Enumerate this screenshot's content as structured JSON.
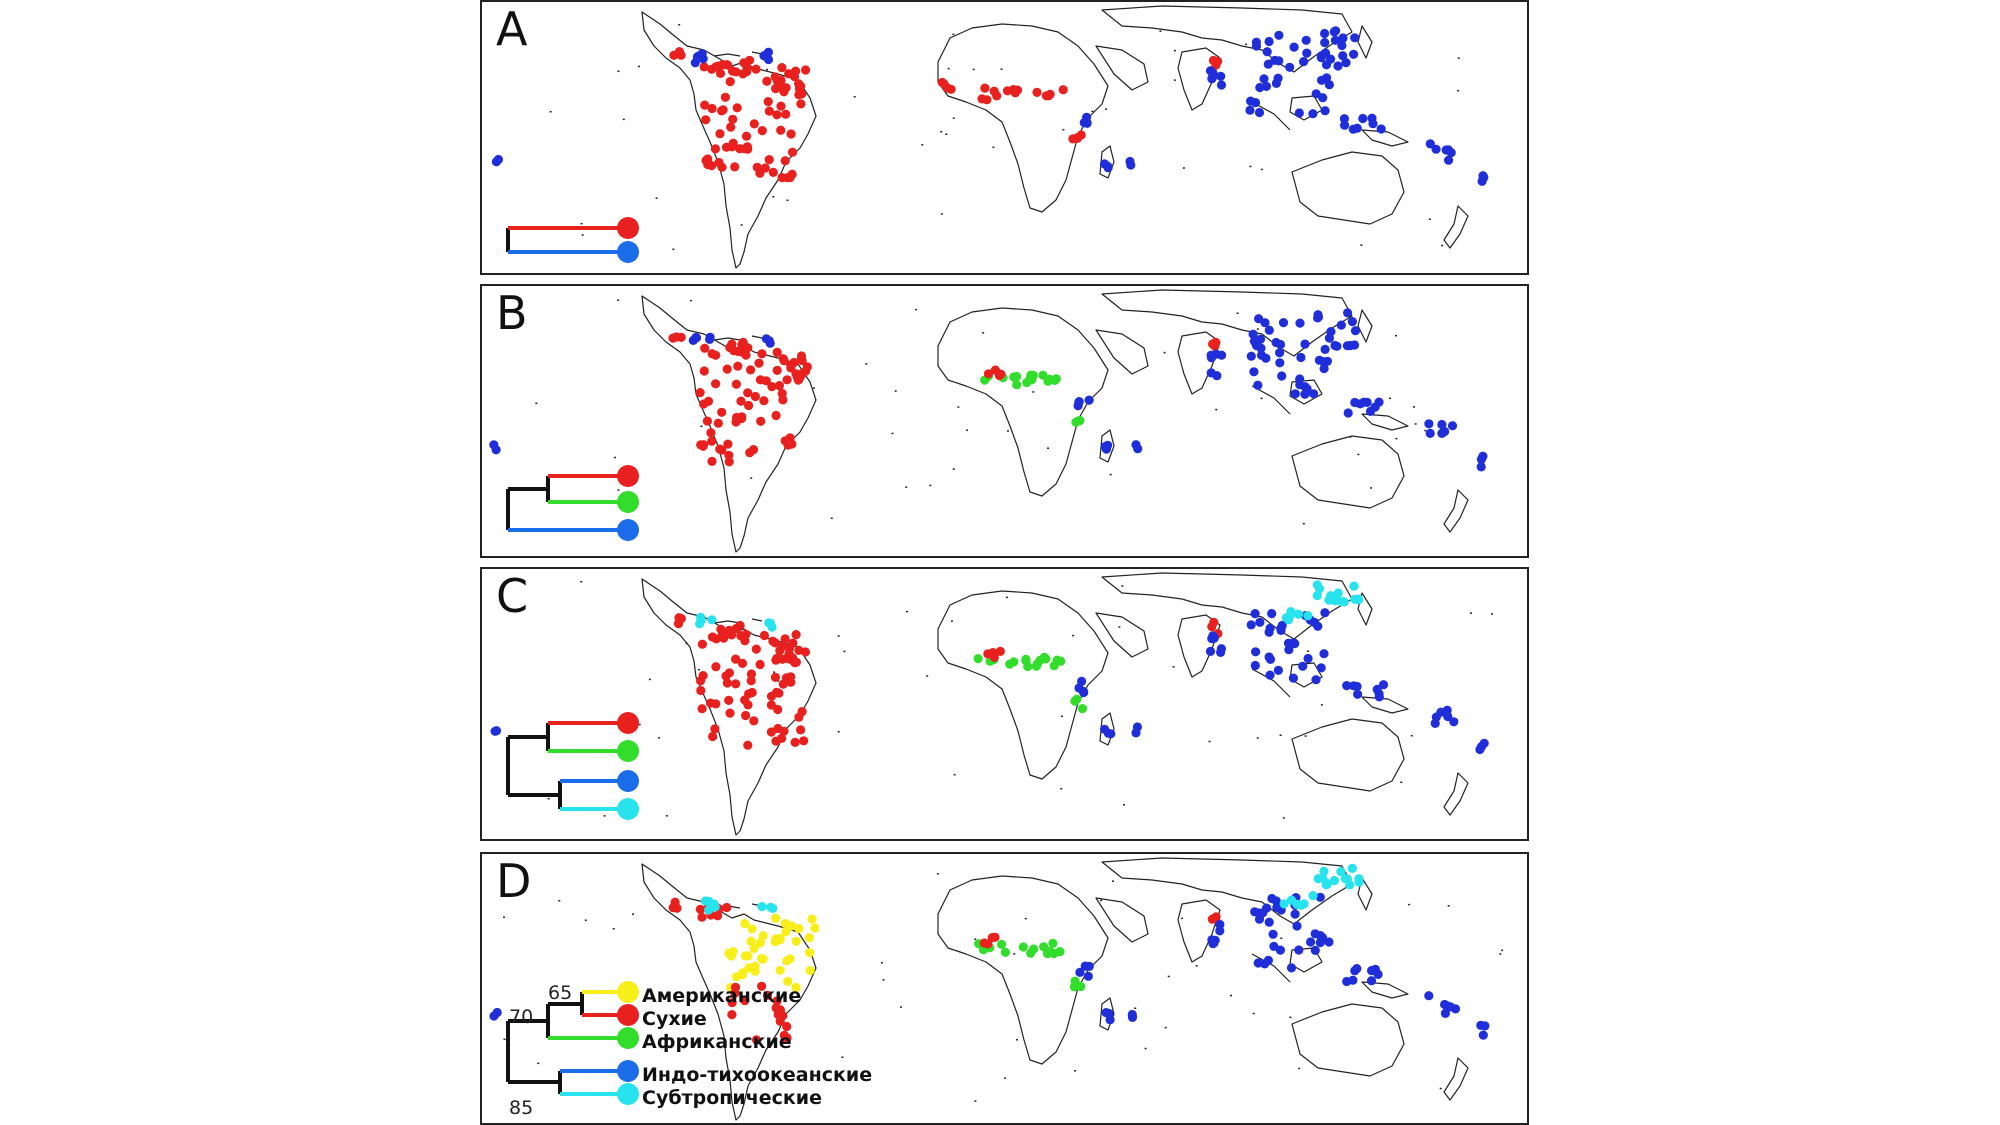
{
  "colors": {
    "red": "#e8201e",
    "green": "#33dd2c",
    "blue": "#1f2ed8",
    "blue_tree": "#1a6ce8",
    "cyan": "#27e3ee",
    "yellow": "#f7ee1a",
    "border": "#222222",
    "coast": "#222222"
  },
  "panels": [
    {
      "letter": "A",
      "tree": "two-clades"
    },
    {
      "letter": "B",
      "tree": "three-clades"
    },
    {
      "letter": "C",
      "tree": "four-clades"
    },
    {
      "letter": "D",
      "tree": "five-clades"
    }
  ],
  "legend_d": {
    "clades": [
      {
        "label": "Американские",
        "color_key": "yellow"
      },
      {
        "label": "Сухие",
        "color_key": "red"
      },
      {
        "label": "Африканские",
        "color_key": "green"
      },
      {
        "label": "Индо-тихоокеанские",
        "color_key": "blue_tree"
      },
      {
        "label": "Субтропические",
        "color_key": "cyan"
      }
    ],
    "node_support": [
      "65",
      "70",
      "85"
    ]
  }
}
